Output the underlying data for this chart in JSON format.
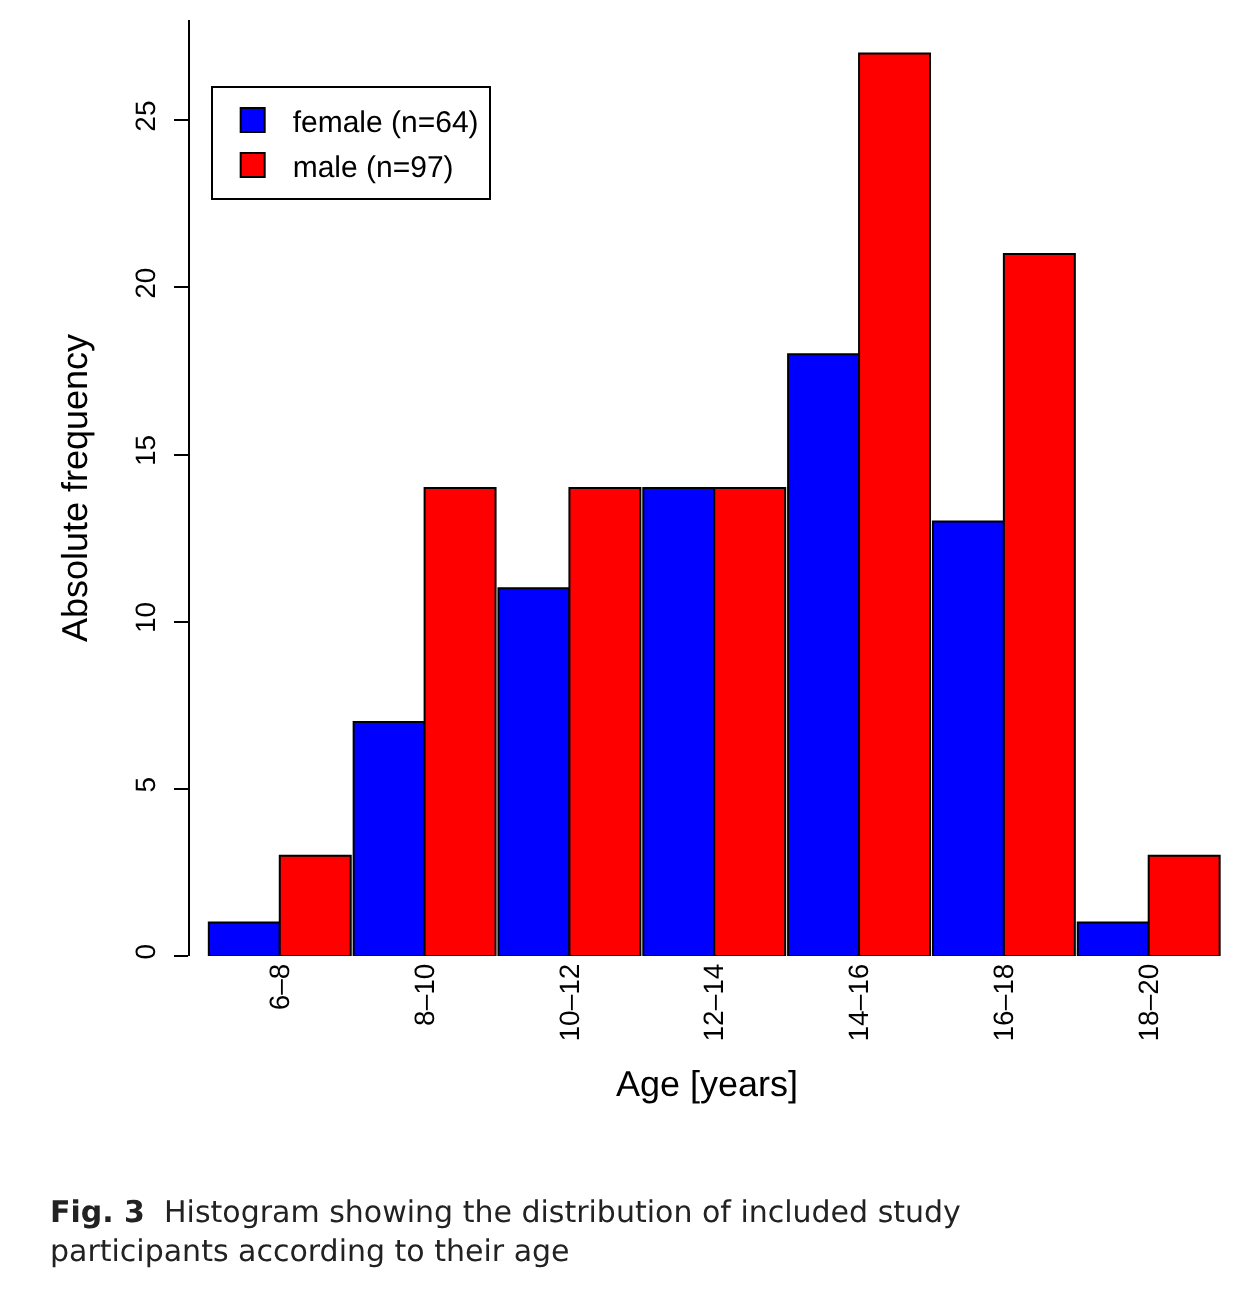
{
  "chart_data": {
    "type": "bar",
    "xlabel": "Age [years]",
    "ylabel": "Absolute frequency",
    "categories": [
      "6–8",
      "8–10",
      "10–12",
      "12–14",
      "14–16",
      "16–18",
      "18–20"
    ],
    "series": [
      {
        "name": "female (n=64)",
        "color": "#0000ff",
        "values": [
          1,
          7,
          11,
          14,
          18,
          13,
          1
        ]
      },
      {
        "name": "male (n=97)",
        "color": "#ff0000",
        "values": [
          3,
          14,
          14,
          14,
          27,
          21,
          3
        ]
      }
    ],
    "ylim": [
      0,
      28
    ],
    "yticks": [
      0,
      5,
      10,
      15,
      20,
      25
    ],
    "legend": "top left",
    "annotations": [
      "Fig. 3 Histogram showing the distribution of included study participants according to their age"
    ]
  }
}
